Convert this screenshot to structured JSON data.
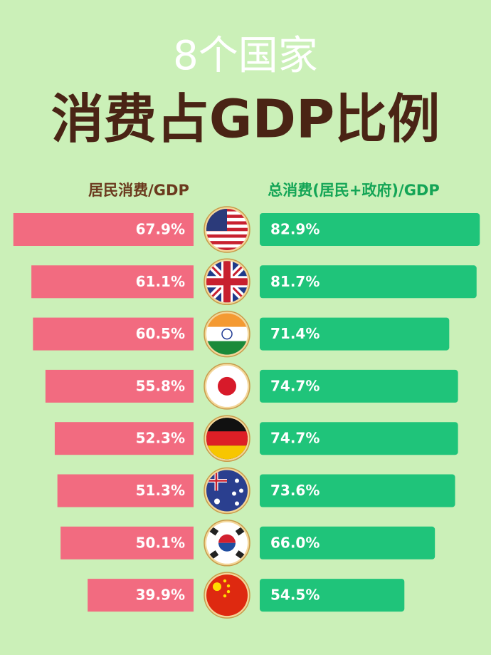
{
  "chart_data": {
    "type": "bar",
    "title": "8个国家",
    "subtitle": "消费占GDP比例",
    "categories": [
      null,
      null,
      null,
      null,
      null,
      null,
      null,
      null
    ],
    "series": [
      {
        "name": "居民消费/GDP",
        "color": "#f26b80",
        "values": [
          67.9,
          61.1,
          60.5,
          55.8,
          52.3,
          51.3,
          50.1,
          39.9
        ],
        "value_labels": [
          "67.9%",
          "61.1%",
          "60.5%",
          "55.8%",
          "52.3%",
          "51.3%",
          "50.1%",
          "39.9%"
        ]
      },
      {
        "name": "总消费(居民+政府)/GDP",
        "color": "#1fc47a",
        "values": [
          82.9,
          81.7,
          71.4,
          74.7,
          74.7,
          73.6,
          66.0,
          54.5
        ],
        "value_labels": [
          "82.9%",
          "81.7%",
          "71.4%",
          "74.7%",
          "74.7%",
          "73.6%",
          "66.0%",
          "54.5%"
        ]
      }
    ]
  }
}
